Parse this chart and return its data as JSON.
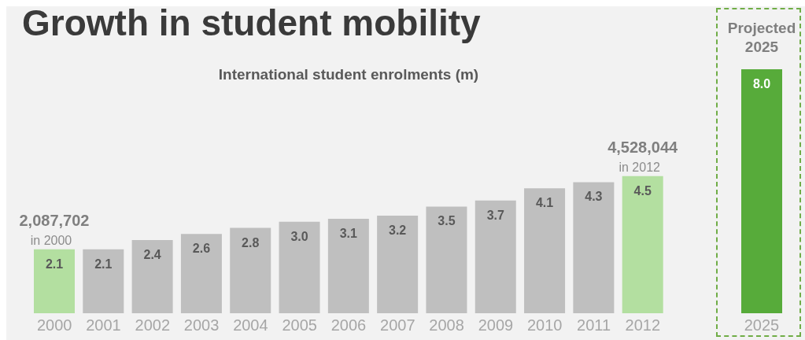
{
  "chart_data": [
    {
      "type": "bar",
      "title": "Growth in student mobility",
      "subtitle": "International student enrolments (m)",
      "categories": [
        "2000",
        "2001",
        "2002",
        "2003",
        "2004",
        "2005",
        "2006",
        "2007",
        "2008",
        "2009",
        "2010",
        "2011",
        "2012"
      ],
      "values": [
        2.1,
        2.1,
        2.4,
        2.6,
        2.8,
        3.0,
        3.1,
        3.2,
        3.5,
        3.7,
        4.1,
        4.3,
        4.5
      ],
      "value_labels": [
        "2.1",
        "2.1",
        "2.4",
        "2.6",
        "2.8",
        "3.0",
        "3.1",
        "3.2",
        "3.5",
        "3.7",
        "4.1",
        "4.3",
        "4.5"
      ],
      "colors": [
        "#b3dfa0",
        "#bfbfbf",
        "#bfbfbf",
        "#bfbfbf",
        "#bfbfbf",
        "#bfbfbf",
        "#bfbfbf",
        "#bfbfbf",
        "#bfbfbf",
        "#bfbfbf",
        "#bfbfbf",
        "#bfbfbf",
        "#b3dfa0"
      ],
      "annotations": [
        {
          "text": "2,087,702",
          "x": "2000",
          "y": 2.1
        },
        {
          "text": "in 2000",
          "x": "2000",
          "y": 2.1
        },
        {
          "text": "4,528,044",
          "x": "2012",
          "y": 4.5
        },
        {
          "text": "in 2012",
          "x": "2012",
          "y": 4.5
        }
      ]
    },
    {
      "type": "bar",
      "title": "Projected 2025",
      "categories": [
        "2025"
      ],
      "values": [
        8.0
      ],
      "value_labels": [
        "8.0"
      ],
      "colors": [
        "#57ab3a"
      ]
    }
  ]
}
